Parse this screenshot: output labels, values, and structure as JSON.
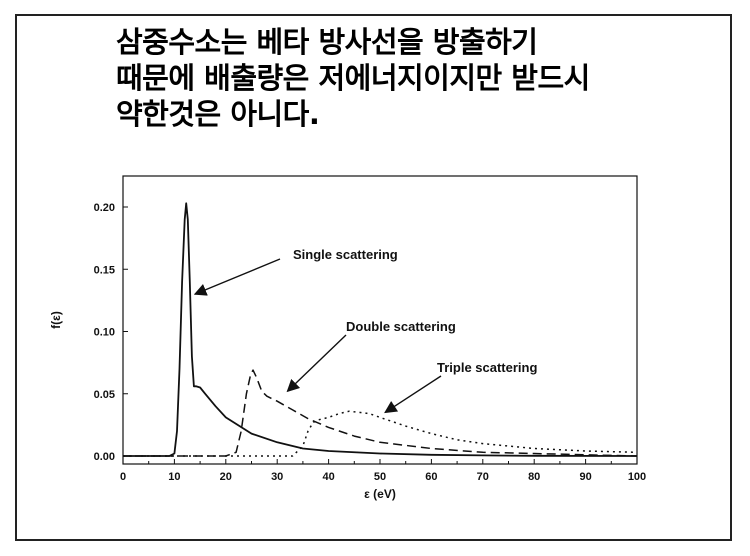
{
  "slide": {
    "headline_lines": [
      "삼중수소는 베타 방사선을 방출하기",
      "때문에 배출량은 저에너지이지만 받드시",
      "약한것은 아니다."
    ]
  },
  "chart_data": {
    "type": "line",
    "xlabel": "ε (eV)",
    "ylabel": "f(ε)",
    "xlim": [
      0,
      100
    ],
    "ylim": [
      0,
      0.22
    ],
    "x_ticks": [
      0,
      10,
      20,
      30,
      40,
      50,
      60,
      70,
      80,
      90,
      100
    ],
    "y_ticks": [
      0.0,
      0.05,
      0.1,
      0.15,
      0.2
    ],
    "x_tick_labels": [
      "0",
      "10",
      "20",
      "30",
      "40",
      "50",
      "60",
      "70",
      "80",
      "90",
      "100"
    ],
    "y_tick_labels": [
      "0.00",
      "0.05",
      "0.10",
      "0.15",
      "0.20"
    ],
    "grid": false,
    "series": [
      {
        "name": "Single scattering",
        "style": "solid",
        "x": [
          0,
          9,
          10,
          10.5,
          11,
          11.5,
          12,
          12.3,
          12.6,
          13,
          13.4,
          13.8,
          14.2,
          15,
          16,
          18,
          20,
          25,
          30,
          35,
          40,
          50,
          60,
          70,
          80,
          100
        ],
        "y": [
          0,
          0,
          0.002,
          0.02,
          0.07,
          0.14,
          0.19,
          0.203,
          0.19,
          0.14,
          0.08,
          0.056,
          0.056,
          0.055,
          0.05,
          0.04,
          0.031,
          0.018,
          0.011,
          0.006,
          0.004,
          0.002,
          0.001,
          0.0005,
          0.0002,
          0
        ]
      },
      {
        "name": "Double scattering",
        "style": "dashed",
        "x": [
          0,
          20,
          22,
          23,
          24,
          24.8,
          25.3,
          26,
          27,
          28,
          30,
          33,
          36,
          40,
          45,
          50,
          60,
          70,
          80,
          90,
          100
        ],
        "y": [
          0,
          0,
          0.003,
          0.02,
          0.05,
          0.065,
          0.069,
          0.063,
          0.052,
          0.048,
          0.044,
          0.037,
          0.03,
          0.023,
          0.016,
          0.011,
          0.006,
          0.003,
          0.002,
          0.001,
          0
        ]
      },
      {
        "name": "Triple scattering",
        "style": "dotted",
        "x": [
          0,
          33,
          35,
          36,
          37,
          38,
          40,
          42,
          44,
          46,
          48,
          50,
          55,
          60,
          65,
          70,
          80,
          90,
          100
        ],
        "y": [
          0,
          0,
          0.008,
          0.02,
          0.027,
          0.029,
          0.031,
          0.034,
          0.036,
          0.035,
          0.034,
          0.031,
          0.024,
          0.018,
          0.013,
          0.01,
          0.006,
          0.004,
          0.003
        ]
      }
    ],
    "annotations": [
      {
        "text": "Single scattering",
        "arrow_to": [
          14,
          0.13
        ]
      },
      {
        "text": "Double scattering",
        "arrow_to": [
          32,
          0.052
        ]
      },
      {
        "text": "Triple scattering",
        "arrow_to": [
          51,
          0.035
        ]
      }
    ]
  }
}
